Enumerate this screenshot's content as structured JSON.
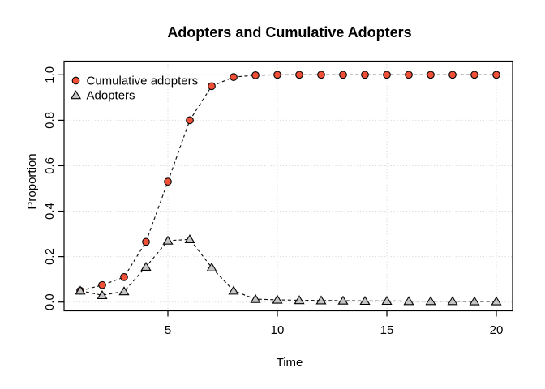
{
  "chart_data": {
    "type": "line",
    "title": "Adopters and Cumulative Adopters",
    "xlabel": "Time",
    "ylabel": "Proportion",
    "xlim": [
      1,
      20
    ],
    "ylim": [
      0,
      1
    ],
    "grid": "dotted",
    "legend_position": "top-left",
    "x_ticks": {
      "values": [
        5,
        10,
        15,
        20
      ],
      "labels": [
        "5",
        "10",
        "15",
        "20"
      ]
    },
    "y_ticks": {
      "values": [
        0,
        0.2,
        0.4,
        0.6,
        0.8,
        1.0
      ],
      "labels": [
        "0.0",
        "0.2",
        "0.4",
        "0.6",
        "0.8",
        "1.0"
      ]
    },
    "x": [
      1,
      2,
      3,
      4,
      5,
      6,
      7,
      8,
      9,
      10,
      11,
      12,
      13,
      14,
      15,
      16,
      17,
      18,
      19,
      20
    ],
    "series": [
      {
        "name": "Cumulative adopters",
        "marker": "circle",
        "marker_color": "#ee5038",
        "line_style": "dashed",
        "values": [
          0.05,
          0.075,
          0.11,
          0.265,
          0.53,
          0.8,
          0.95,
          0.99,
          0.998,
          1,
          1,
          1,
          1,
          1,
          1,
          1,
          1,
          1,
          1,
          1
        ]
      },
      {
        "name": "Adopters",
        "marker": "triangle",
        "marker_color": "#c4c4c4",
        "line_style": "dashed",
        "values": [
          0.05,
          0.03,
          0.047,
          0.155,
          0.27,
          0.276,
          0.152,
          0.05,
          0.013,
          0.01,
          0.008,
          0.007,
          0.006,
          0.005,
          0.005,
          0.004,
          0.004,
          0.004,
          0.003,
          0.003
        ]
      }
    ],
    "colors": {
      "line": "#111111",
      "marker_outline": "#000000",
      "grid": "#d8d8d8",
      "axis": "#000000",
      "background": "#ffffff"
    }
  }
}
